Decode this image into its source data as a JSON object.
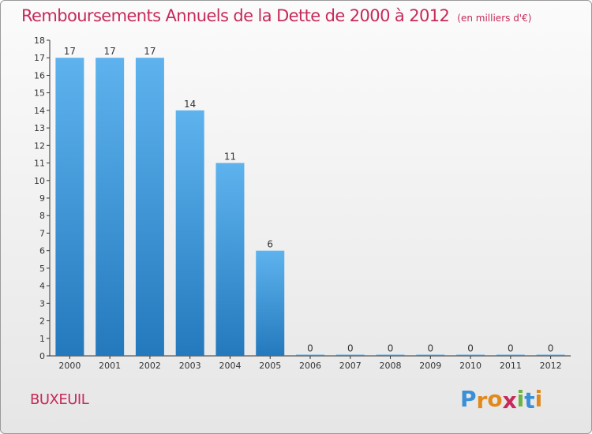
{
  "header": {
    "title": "Remboursements Annuels de la Dette de 2000 à 2012",
    "unit": "(en milliers d'€)"
  },
  "footer": {
    "town": "BUXEUIL",
    "logo_letters": [
      "P",
      "r",
      "o",
      "x",
      "i",
      "t",
      "i"
    ],
    "logo_colors": [
      "#3a8fd6",
      "#e08a1e",
      "#e08a1e",
      "#c62a5a",
      "#6cb33f",
      "#3a8fd6",
      "#e08a1e"
    ]
  },
  "colors": {
    "bar_top": "#5eb3ee",
    "bar_bottom": "#2479bd",
    "title": "#c62a5a",
    "axis": "#333333"
  },
  "chart_data": {
    "type": "bar",
    "title": "Remboursements Annuels de la Dette de 2000 à 2012",
    "subtitle": "(en milliers d'€)",
    "categories": [
      "2000",
      "2001",
      "2002",
      "2003",
      "2004",
      "2005",
      "2006",
      "2007",
      "2008",
      "2009",
      "2010",
      "2011",
      "2012"
    ],
    "values": [
      17,
      17,
      17,
      14,
      11,
      6,
      0,
      0,
      0,
      0,
      0,
      0,
      0
    ],
    "ylim": [
      0,
      18
    ],
    "yticks": [
      0,
      1,
      2,
      3,
      4,
      5,
      6,
      7,
      8,
      9,
      10,
      11,
      12,
      13,
      14,
      15,
      16,
      17,
      18
    ],
    "grid": false,
    "xlabel": "",
    "ylabel": ""
  }
}
